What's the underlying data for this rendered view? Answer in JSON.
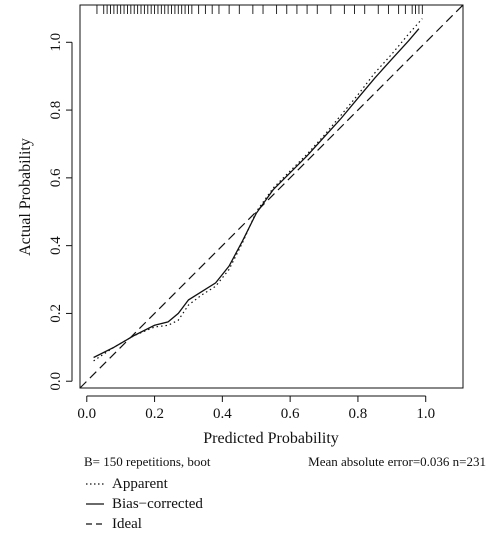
{
  "chart_data": {
    "type": "line",
    "title": "",
    "xlabel": "Predicted Probability",
    "ylabel": "Actual Probability",
    "xlim": [
      -0.02,
      1.11
    ],
    "ylim": [
      -0.02,
      1.11
    ],
    "x_ticks": [
      0.0,
      0.2,
      0.4,
      0.6,
      0.8,
      1.0
    ],
    "y_ticks": [
      0.0,
      0.2,
      0.4,
      0.6,
      0.8,
      1.0
    ],
    "x_tick_labels": [
      "0.0",
      "0.2",
      "0.4",
      "0.6",
      "0.8",
      "1.0"
    ],
    "y_tick_labels": [
      "0.0",
      "0.2",
      "0.4",
      "0.6",
      "0.8",
      "1.0"
    ],
    "grid": false,
    "legend_position": "bottom-left",
    "series": [
      {
        "name": "Apparent",
        "style": "dotted",
        "x": [
          0.02,
          0.08,
          0.14,
          0.2,
          0.24,
          0.27,
          0.3,
          0.34,
          0.38,
          0.42,
          0.46,
          0.5,
          0.55,
          0.6,
          0.65,
          0.7,
          0.75,
          0.8,
          0.85,
          0.9,
          0.95,
          0.99
        ],
        "y": [
          0.06,
          0.1,
          0.135,
          0.16,
          0.165,
          0.18,
          0.225,
          0.255,
          0.28,
          0.33,
          0.41,
          0.5,
          0.57,
          0.62,
          0.67,
          0.725,
          0.785,
          0.845,
          0.91,
          0.965,
          1.025,
          1.07
        ]
      },
      {
        "name": "Bias−corrected",
        "style": "solid",
        "x": [
          0.02,
          0.08,
          0.14,
          0.2,
          0.24,
          0.27,
          0.3,
          0.34,
          0.38,
          0.42,
          0.46,
          0.5,
          0.55,
          0.6,
          0.65,
          0.7,
          0.75,
          0.8,
          0.85,
          0.9,
          0.95,
          0.98
        ],
        "y": [
          0.07,
          0.1,
          0.135,
          0.165,
          0.175,
          0.2,
          0.24,
          0.265,
          0.29,
          0.34,
          0.415,
          0.495,
          0.565,
          0.615,
          0.665,
          0.72,
          0.775,
          0.835,
          0.895,
          0.95,
          1.005,
          1.04
        ]
      },
      {
        "name": "Ideal",
        "style": "dashed",
        "x": [
          -0.02,
          1.11
        ],
        "y": [
          -0.02,
          1.11
        ]
      }
    ],
    "rug_x": [
      0.03,
      0.05,
      0.06,
      0.07,
      0.08,
      0.09,
      0.1,
      0.11,
      0.12,
      0.13,
      0.14,
      0.15,
      0.16,
      0.17,
      0.18,
      0.19,
      0.2,
      0.21,
      0.22,
      0.23,
      0.24,
      0.25,
      0.26,
      0.27,
      0.28,
      0.29,
      0.3,
      0.31,
      0.33,
      0.35,
      0.37,
      0.39,
      0.42,
      0.45,
      0.49,
      0.52,
      0.56,
      0.59,
      0.62,
      0.65,
      0.68,
      0.72,
      0.76,
      0.79,
      0.82,
      0.86,
      0.89,
      0.92,
      0.94,
      0.96,
      0.97,
      0.98,
      0.99
    ]
  },
  "footnote": {
    "left": "B= 150 repetitions, boot",
    "right": "Mean absolute error=0.036 n=231"
  },
  "legend": [
    {
      "label": "Apparent",
      "style": "dotted"
    },
    {
      "label": "Bias−corrected",
      "style": "solid"
    },
    {
      "label": "Ideal",
      "style": "dashed"
    }
  ]
}
